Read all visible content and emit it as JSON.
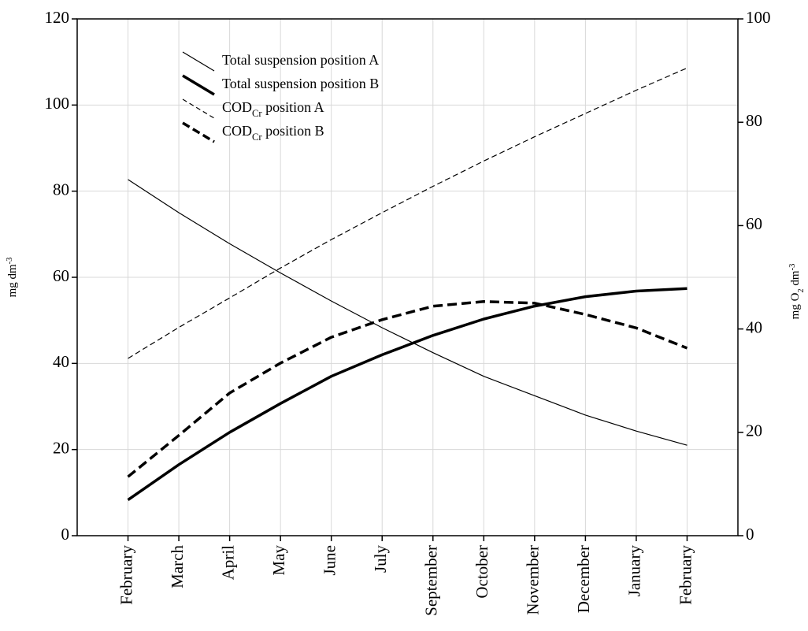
{
  "chart_data": {
    "type": "line",
    "categories": [
      "February",
      "March",
      "April",
      "May",
      "June",
      "July",
      "September",
      "October",
      "November",
      "December",
      "January",
      "February"
    ],
    "ylabel": [
      {
        "text": "mg dm"
      },
      {
        "text": "-3",
        "sup": true
      }
    ],
    "y2label": [
      {
        "text": "mg O"
      },
      {
        "text": "2",
        "sub": true
      },
      {
        "text": " dm"
      },
      {
        "text": "-3",
        "sup": true
      }
    ],
    "ylim": [
      0,
      120
    ],
    "yticks": [
      0,
      20,
      40,
      60,
      80,
      100,
      120
    ],
    "y2lim": [
      0,
      100
    ],
    "y2ticks": [
      0,
      20,
      40,
      60,
      80,
      100
    ],
    "grid": true,
    "series": [
      {
        "name": "Total suspension position A",
        "color": "#000000",
        "width": 1.2,
        "dash": false,
        "values": [
          82.7,
          75,
          67.8,
          61,
          54.5,
          48.3,
          42.5,
          37,
          32.5,
          28,
          24.3,
          21
        ]
      },
      {
        "name": "Total suspension position B",
        "color": "#000000",
        "width": 3.5,
        "dash": false,
        "values": [
          8.3,
          16.5,
          24,
          30.7,
          37,
          42,
          46.5,
          50.3,
          53.3,
          55.5,
          56.8,
          57.4
        ]
      },
      {
        "name": [
          {
            "text": "COD"
          },
          {
            "text": "Cr",
            "sub": true
          },
          {
            "text": " position A"
          }
        ],
        "color": "#000000",
        "width": 1.2,
        "dash": true,
        "axis": "y2",
        "values": [
          34.3,
          40.3,
          46,
          51.8,
          57.3,
          62.5,
          67.6,
          72.5,
          77.2,
          81.7,
          86.2,
          90.5
        ]
      },
      {
        "name": [
          {
            "text": "COD"
          },
          {
            "text": "Cr",
            "sub": true
          },
          {
            "text": " position B"
          }
        ],
        "color": "#000000",
        "width": 3.5,
        "dash": true,
        "axis": "y2",
        "values": [
          11.4,
          19.4,
          27.6,
          33.4,
          38.4,
          41.8,
          44.4,
          45.3,
          45,
          42.8,
          40.2,
          36.3
        ]
      }
    ]
  }
}
